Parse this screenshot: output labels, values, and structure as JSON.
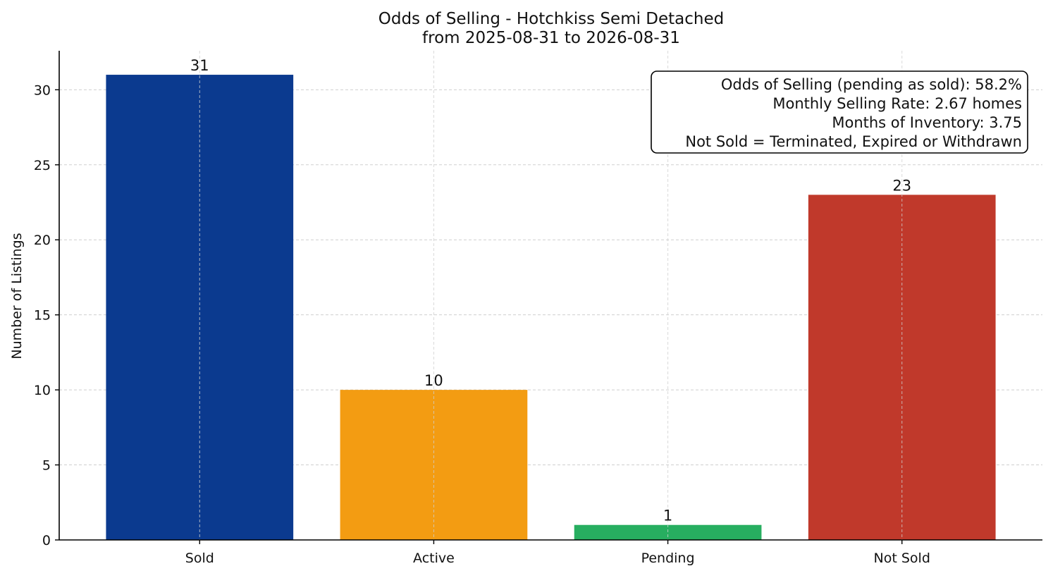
{
  "chart_data": {
    "type": "bar",
    "title": "Odds of Selling - Hotchkiss Semi Detached",
    "subtitle": "from 2025-08-31 to 2026-08-31",
    "xlabel": "",
    "ylabel": "Number of Listings",
    "categories": [
      "Sold",
      "Active",
      "Pending",
      "Not Sold"
    ],
    "values": [
      31,
      10,
      1,
      23
    ],
    "colors": [
      "#0b3a8f",
      "#f39c12",
      "#27ae60",
      "#c0392b"
    ],
    "ylim": [
      0,
      32.6
    ],
    "yticks": [
      0,
      5,
      10,
      15,
      20,
      25,
      30
    ],
    "grid": true,
    "annotation": {
      "placement": "top-right",
      "lines": [
        "Odds of Selling (pending as sold): 58.2%",
        "Monthly Selling Rate: 2.67 homes",
        "Months of Inventory: 3.75",
        "Not Sold = Terminated, Expired or Withdrawn"
      ]
    }
  }
}
